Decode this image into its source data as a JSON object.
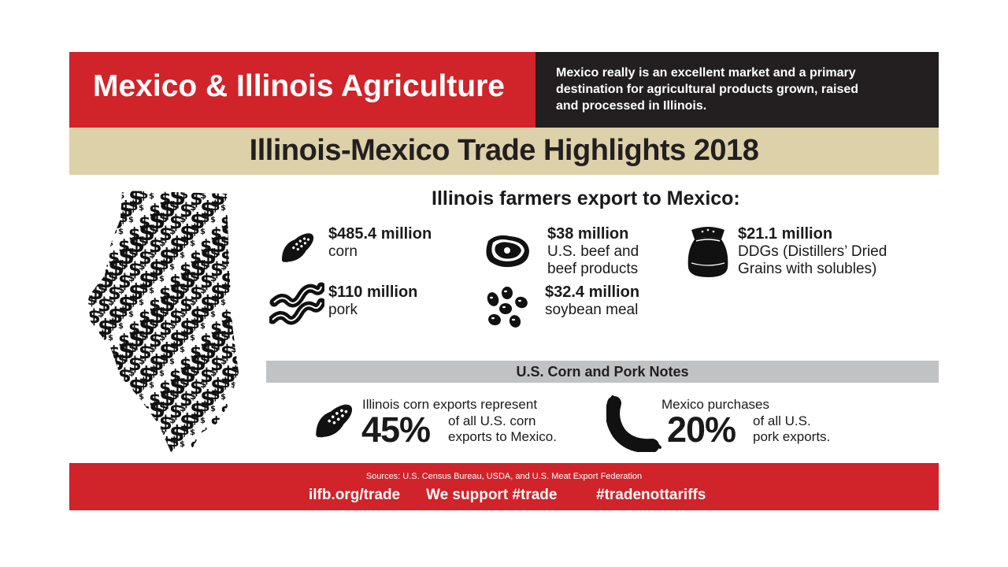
{
  "banner": {
    "title": "Mexico & Illinois Agriculture",
    "quote_line1": "Mexico really is an excellent market and a primary",
    "quote_line2": "destination for agricultural products grown, raised",
    "quote_line3": "and processed in Illinois."
  },
  "subhead": "Illinois-Mexico Trade Highlights 2018",
  "exports": {
    "heading": "Illinois farmers export to Mexico:",
    "items": [
      {
        "amount": "$485.4 million",
        "line1": "corn",
        "line2": "",
        "icon": "corn-icon"
      },
      {
        "amount": "$38 million",
        "line1": "U.S. beef and",
        "line2": "beef products",
        "icon": "steak-icon"
      },
      {
        "amount": "$21.1 million",
        "line1": "DDGs (Distillers’ Dried",
        "line2": "Grains with solubles)",
        "icon": "grain-sack-icon"
      },
      {
        "amount": "$110 million",
        "line1": "pork",
        "line2": "",
        "icon": "bacon-icon"
      },
      {
        "amount": "$32.4 million",
        "line1": "soybean meal",
        "line2": "",
        "icon": "soybeans-icon"
      }
    ]
  },
  "notes": {
    "heading": "U.S. Corn and Pork Notes",
    "corn": {
      "intro": "Illinois corn exports represent",
      "percent": "45%",
      "tail1": "of all U.S. corn",
      "tail2": "exports to Mexico.",
      "percent_value": 45
    },
    "pork": {
      "intro": "Mexico purchases",
      "percent": "20%",
      "tail1": "of all U.S.",
      "tail2": "pork exports.",
      "percent_value": 20
    }
  },
  "footer": {
    "sources": "Sources:  U.S. Census Bureau, USDA, and U.S. Meat Export Federation",
    "link1": "ilfb.org/trade",
    "link2": "We support #trade",
    "link3": "#tradenottariffs"
  },
  "colors": {
    "red": "#d0232a",
    "black": "#231f20",
    "tan": "#ddd1a9",
    "gray": "#c1c2c4"
  },
  "map": {
    "symbol": "$",
    "icon": "illinois-dollar-map-icon"
  }
}
